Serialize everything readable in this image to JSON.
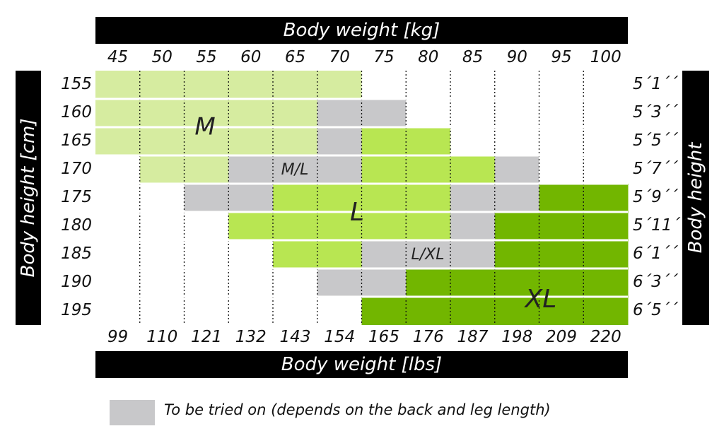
{
  "chart_data": {
    "type": "heatmap",
    "title": "",
    "top_axis_label": "Body weight [kg]",
    "bottom_axis_label": "Body weight [lbs]",
    "left_axis_label": "Body height [cm]",
    "right_axis_label": "Body height",
    "weight_kg": [
      "45",
      "50",
      "55",
      "60",
      "65",
      "70",
      "75",
      "80",
      "85",
      "90",
      "95",
      "100"
    ],
    "weight_lbs": [
      "99",
      "110",
      "121",
      "132",
      "143",
      "154",
      "165",
      "176",
      "187",
      "198",
      "209",
      "220"
    ],
    "height_cm": [
      "155",
      "160",
      "165",
      "170",
      "175",
      "180",
      "185",
      "190",
      "195"
    ],
    "height_ft": [
      "5´1´´",
      "5´3´´",
      "5´5´´",
      "5´7´´",
      "5´9´´",
      "5´11´´",
      "6´1´´",
      "6´3´´",
      "6´5´´"
    ],
    "size_colors": {
      "M": "#d6eca0",
      "M/L": "#c8c8ca",
      "L": "#b8e652",
      "L/XL": "#c8c8ca",
      "XL": "#72b600",
      "empty": "#ffffff"
    },
    "cells": [
      [
        "M",
        "M",
        "M",
        "M",
        "M",
        "M",
        "",
        "",
        "",
        "",
        "",
        ""
      ],
      [
        "M",
        "M",
        "M",
        "M",
        "M",
        "M/L",
        "M/L",
        "",
        "",
        "",
        "",
        ""
      ],
      [
        "M",
        "M",
        "M",
        "M",
        "M",
        "M/L",
        "L",
        "L",
        "",
        "",
        "",
        ""
      ],
      [
        "",
        "M",
        "M",
        "M/L",
        "M/L",
        "M/L",
        "L",
        "L",
        "L",
        "M/L",
        "",
        ""
      ],
      [
        "",
        "",
        "M/L",
        "M/L",
        "L",
        "L",
        "L",
        "L",
        "L/XL",
        "L/XL",
        "XL",
        "XL"
      ],
      [
        "",
        "",
        "",
        "L",
        "L",
        "L",
        "L",
        "L",
        "L/XL",
        "XL",
        "XL",
        "XL"
      ],
      [
        "",
        "",
        "",
        "",
        "L",
        "L",
        "L/XL",
        "L/XL",
        "L/XL",
        "XL",
        "XL",
        "XL"
      ],
      [
        "",
        "",
        "",
        "",
        "",
        "L/XL",
        "L/XL",
        "XL",
        "XL",
        "XL",
        "XL",
        "XL"
      ],
      [
        "",
        "",
        "",
        "",
        "",
        "",
        "XL",
        "XL",
        "XL",
        "XL",
        "XL",
        "XL"
      ]
    ],
    "region_labels": [
      "M",
      "M/L",
      "L",
      "L/XL",
      "XL"
    ],
    "grid": true
  },
  "legend": {
    "color": "#c8c8ca",
    "label": "To be tried on (depends on the back and leg length)"
  }
}
